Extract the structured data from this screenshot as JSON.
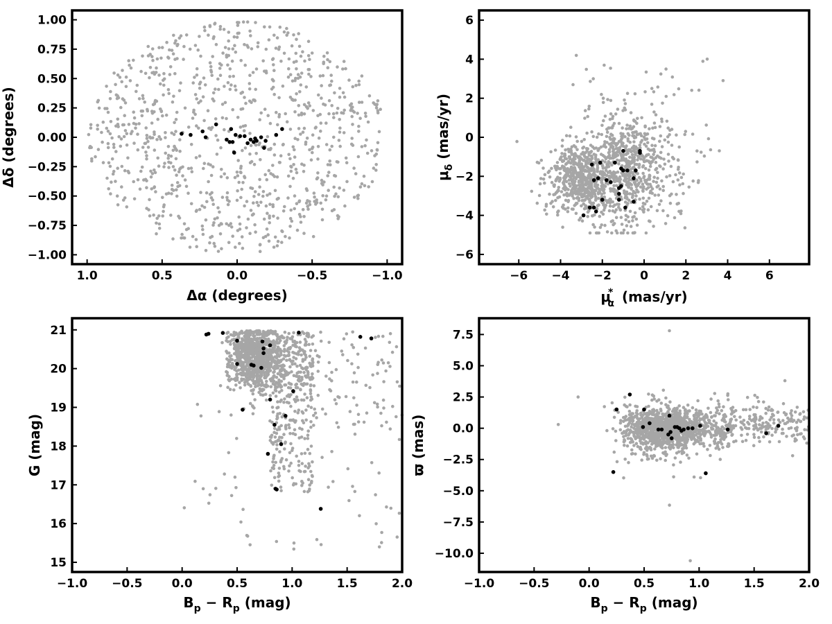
{
  "colors": {
    "field": "#a6a6a6",
    "member": "#000000",
    "axes": "#000000"
  },
  "chart_data": [
    {
      "id": "sky",
      "type": "scatter",
      "xlabel": "Δα (degrees)",
      "ylabel": "Δδ (degrees)",
      "xlim": [
        1.1,
        -1.1
      ],
      "ylim": [
        -1.08,
        1.08
      ],
      "x_ticks": [
        1.0,
        0.5,
        0.0,
        -0.5,
        -1.0
      ],
      "x_tick_labels": [
        "1.0",
        "0.5",
        "0.0",
        "−0.5",
        "−1.0"
      ],
      "y_ticks": [
        -1.0,
        -0.75,
        -0.5,
        -0.25,
        0.0,
        0.25,
        0.5,
        0.75,
        1.0
      ],
      "y_tick_labels": [
        "−1.00",
        "−0.75",
        "−0.50",
        "−0.25",
        "0.00",
        "0.25",
        "0.50",
        "0.75",
        "1.00"
      ],
      "grid": false,
      "field_sample": {
        "count": 950,
        "shape": "disk",
        "center": [
          0.0,
          0.0
        ],
        "radius": 1.0
      },
      "members": [
        [
          0.37,
          0.03
        ],
        [
          0.31,
          0.02
        ],
        [
          0.23,
          0.05
        ],
        [
          0.21,
          0.0
        ],
        [
          0.14,
          0.11
        ],
        [
          0.07,
          -0.02
        ],
        [
          0.05,
          -0.04
        ],
        [
          0.04,
          0.07
        ],
        [
          0.03,
          -0.04
        ],
        [
          0.02,
          -0.13
        ],
        [
          0.01,
          0.02
        ],
        [
          -0.02,
          0.01
        ],
        [
          -0.05,
          0.01
        ],
        [
          -0.07,
          -0.05
        ],
        [
          -0.09,
          -0.02
        ],
        [
          -0.11,
          -0.04
        ],
        [
          -0.12,
          -0.01
        ],
        [
          -0.13,
          -0.03
        ],
        [
          -0.16,
          0.0
        ],
        [
          -0.18,
          -0.09
        ],
        [
          -0.19,
          -0.03
        ],
        [
          -0.26,
          0.02
        ],
        [
          -0.3,
          0.07
        ]
      ]
    },
    {
      "id": "pm",
      "type": "scatter",
      "xlabel_main": "μ",
      "xlabel_sub": "α",
      "xlabel_sup": "*",
      "xlabel_rest": " (mas/yr)",
      "ylabel_main": "μ",
      "ylabel_sub": "δ",
      "ylabel_rest": " (mas/yr)",
      "xlim": [
        -7.9,
        7.9
      ],
      "ylim": [
        -6.5,
        6.5
      ],
      "x_ticks": [
        -6,
        -4,
        -2,
        0,
        2,
        4,
        6
      ],
      "x_tick_labels": [
        "−6",
        "−4",
        "−2",
        "0",
        "2",
        "4",
        "6"
      ],
      "y_ticks": [
        -6,
        -4,
        -2,
        0,
        2,
        4,
        6
      ],
      "y_tick_labels": [
        "−6",
        "−4",
        "−2",
        "0",
        "2",
        "4",
        "6"
      ],
      "grid": false,
      "members": [
        [
          -2.9,
          -4.0
        ],
        [
          -2.6,
          -3.6
        ],
        [
          -2.5,
          -1.4
        ],
        [
          -2.4,
          -3.6
        ],
        [
          -2.4,
          -2.2
        ],
        [
          -2.3,
          -3.8
        ],
        [
          -2.2,
          -2.1
        ],
        [
          -2.1,
          -1.3
        ],
        [
          -2.0,
          -3.2
        ],
        [
          -1.8,
          -2.2
        ],
        [
          -1.6,
          -2.3
        ],
        [
          -1.4,
          -1.3
        ],
        [
          -1.2,
          -2.6
        ],
        [
          -1.2,
          -2.9
        ],
        [
          -1.2,
          -3.2
        ],
        [
          -1.1,
          -2.5
        ],
        [
          -1.1,
          -1.6
        ],
        [
          -1.0,
          -1.7
        ],
        [
          -1.0,
          -0.7
        ],
        [
          -0.9,
          -3.6
        ],
        [
          -0.8,
          -1.7
        ],
        [
          -0.5,
          -3.3
        ],
        [
          -0.5,
          -2.1
        ],
        [
          -0.4,
          -1.7
        ],
        [
          -0.2,
          -0.7
        ],
        [
          -0.2,
          -0.8
        ]
      ]
    },
    {
      "id": "cmd",
      "type": "scatter",
      "xlabel_main": "B",
      "xlabel_sub1": "p",
      "xlabel_mid": " − R",
      "xlabel_sub2": "p",
      "xlabel_rest": " (mag)",
      "ylabel": "G (mag)",
      "xlim": [
        -1.0,
        2.0
      ],
      "ylim": [
        14.75,
        21.3
      ],
      "x_ticks": [
        -1.0,
        -0.5,
        0.0,
        0.5,
        1.0,
        1.5,
        2.0
      ],
      "x_tick_labels": [
        "−1.0",
        "−0.5",
        "0.0",
        "0.5",
        "1.0",
        "1.5",
        "2.0"
      ],
      "y_ticks": [
        15,
        16,
        17,
        18,
        19,
        20,
        21
      ],
      "y_tick_labels": [
        "15",
        "16",
        "17",
        "18",
        "19",
        "20",
        "21"
      ],
      "grid": false,
      "members": [
        [
          0.22,
          20.88
        ],
        [
          0.24,
          20.9
        ],
        [
          0.37,
          20.92
        ],
        [
          0.5,
          20.72
        ],
        [
          0.5,
          20.12
        ],
        [
          0.55,
          18.94
        ],
        [
          0.63,
          20.1
        ],
        [
          0.65,
          20.08
        ],
        [
          0.72,
          20.02
        ],
        [
          0.73,
          20.7
        ],
        [
          0.74,
          20.52
        ],
        [
          0.74,
          20.4
        ],
        [
          0.78,
          17.8
        ],
        [
          0.8,
          19.2
        ],
        [
          0.8,
          20.6
        ],
        [
          0.84,
          18.55
        ],
        [
          0.85,
          16.9
        ],
        [
          0.86,
          16.88
        ],
        [
          0.9,
          18.05
        ],
        [
          0.94,
          18.78
        ],
        [
          1.01,
          19.42
        ],
        [
          1.06,
          20.93
        ],
        [
          1.26,
          16.38
        ],
        [
          1.62,
          20.82
        ],
        [
          1.72,
          20.78
        ]
      ]
    },
    {
      "id": "plx",
      "type": "scatter",
      "xlabel_main": "B",
      "xlabel_sub1": "p",
      "xlabel_mid": " − R",
      "xlabel_sub2": "p",
      "xlabel_rest": " (mag)",
      "ylabel": "ϖ (mas)",
      "xlim": [
        -1.0,
        2.0
      ],
      "ylim": [
        -11.5,
        8.8
      ],
      "x_ticks": [
        -1.0,
        -0.5,
        0.0,
        0.5,
        1.0,
        1.5,
        2.0
      ],
      "x_tick_labels": [
        "−1.0",
        "−0.5",
        "0.0",
        "0.5",
        "1.0",
        "1.5",
        "2.0"
      ],
      "y_ticks": [
        -10.0,
        -7.5,
        -5.0,
        -2.5,
        0.0,
        2.5,
        5.0,
        7.5
      ],
      "y_tick_labels": [
        "−10.0",
        "−7.5",
        "−5.0",
        "−2.5",
        "0.0",
        "2.5",
        "5.0",
        "7.5"
      ],
      "grid": false,
      "members": [
        [
          0.22,
          -3.5
        ],
        [
          0.25,
          1.5
        ],
        [
          0.37,
          2.7
        ],
        [
          0.49,
          0.1
        ],
        [
          0.5,
          1.5
        ],
        [
          0.55,
          0.4
        ],
        [
          0.63,
          -0.1
        ],
        [
          0.66,
          -0.1
        ],
        [
          0.72,
          -0.5
        ],
        [
          0.73,
          1.0
        ],
        [
          0.74,
          -0.3
        ],
        [
          0.75,
          -0.8
        ],
        [
          0.78,
          0.1
        ],
        [
          0.8,
          0.1
        ],
        [
          0.82,
          0.0
        ],
        [
          0.84,
          -0.2
        ],
        [
          0.86,
          -0.1
        ],
        [
          0.9,
          0.0
        ],
        [
          0.94,
          0.0
        ],
        [
          1.01,
          0.2
        ],
        [
          1.06,
          -3.6
        ],
        [
          1.26,
          -0.1
        ],
        [
          1.61,
          -0.4
        ],
        [
          1.72,
          0.2
        ]
      ]
    }
  ]
}
